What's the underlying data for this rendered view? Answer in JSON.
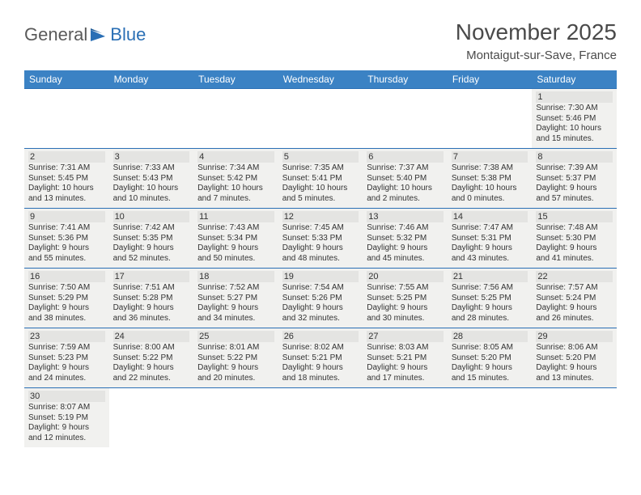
{
  "logo": {
    "text1": "General",
    "text2": "Blue"
  },
  "title": "November 2025",
  "location": "Montaigut-sur-Save, France",
  "colors": {
    "header_bg": "#3b82c4",
    "header_text": "#ffffff",
    "border": "#2a6fb5",
    "cell_bg": "#f1f1ef",
    "daynum_bg": "#e4e4e2",
    "text": "#333333",
    "logo_gray": "#5a5a5a",
    "logo_blue": "#2a6fb5"
  },
  "weekdays": [
    "Sunday",
    "Monday",
    "Tuesday",
    "Wednesday",
    "Thursday",
    "Friday",
    "Saturday"
  ],
  "weeks": [
    [
      null,
      null,
      null,
      null,
      null,
      null,
      {
        "d": "1",
        "sr": "Sunrise: 7:30 AM",
        "ss": "Sunset: 5:46 PM",
        "dl1": "Daylight: 10 hours",
        "dl2": "and 15 minutes."
      }
    ],
    [
      {
        "d": "2",
        "sr": "Sunrise: 7:31 AM",
        "ss": "Sunset: 5:45 PM",
        "dl1": "Daylight: 10 hours",
        "dl2": "and 13 minutes."
      },
      {
        "d": "3",
        "sr": "Sunrise: 7:33 AM",
        "ss": "Sunset: 5:43 PM",
        "dl1": "Daylight: 10 hours",
        "dl2": "and 10 minutes."
      },
      {
        "d": "4",
        "sr": "Sunrise: 7:34 AM",
        "ss": "Sunset: 5:42 PM",
        "dl1": "Daylight: 10 hours",
        "dl2": "and 7 minutes."
      },
      {
        "d": "5",
        "sr": "Sunrise: 7:35 AM",
        "ss": "Sunset: 5:41 PM",
        "dl1": "Daylight: 10 hours",
        "dl2": "and 5 minutes."
      },
      {
        "d": "6",
        "sr": "Sunrise: 7:37 AM",
        "ss": "Sunset: 5:40 PM",
        "dl1": "Daylight: 10 hours",
        "dl2": "and 2 minutes."
      },
      {
        "d": "7",
        "sr": "Sunrise: 7:38 AM",
        "ss": "Sunset: 5:38 PM",
        "dl1": "Daylight: 10 hours",
        "dl2": "and 0 minutes."
      },
      {
        "d": "8",
        "sr": "Sunrise: 7:39 AM",
        "ss": "Sunset: 5:37 PM",
        "dl1": "Daylight: 9 hours",
        "dl2": "and 57 minutes."
      }
    ],
    [
      {
        "d": "9",
        "sr": "Sunrise: 7:41 AM",
        "ss": "Sunset: 5:36 PM",
        "dl1": "Daylight: 9 hours",
        "dl2": "and 55 minutes."
      },
      {
        "d": "10",
        "sr": "Sunrise: 7:42 AM",
        "ss": "Sunset: 5:35 PM",
        "dl1": "Daylight: 9 hours",
        "dl2": "and 52 minutes."
      },
      {
        "d": "11",
        "sr": "Sunrise: 7:43 AM",
        "ss": "Sunset: 5:34 PM",
        "dl1": "Daylight: 9 hours",
        "dl2": "and 50 minutes."
      },
      {
        "d": "12",
        "sr": "Sunrise: 7:45 AM",
        "ss": "Sunset: 5:33 PM",
        "dl1": "Daylight: 9 hours",
        "dl2": "and 48 minutes."
      },
      {
        "d": "13",
        "sr": "Sunrise: 7:46 AM",
        "ss": "Sunset: 5:32 PM",
        "dl1": "Daylight: 9 hours",
        "dl2": "and 45 minutes."
      },
      {
        "d": "14",
        "sr": "Sunrise: 7:47 AM",
        "ss": "Sunset: 5:31 PM",
        "dl1": "Daylight: 9 hours",
        "dl2": "and 43 minutes."
      },
      {
        "d": "15",
        "sr": "Sunrise: 7:48 AM",
        "ss": "Sunset: 5:30 PM",
        "dl1": "Daylight: 9 hours",
        "dl2": "and 41 minutes."
      }
    ],
    [
      {
        "d": "16",
        "sr": "Sunrise: 7:50 AM",
        "ss": "Sunset: 5:29 PM",
        "dl1": "Daylight: 9 hours",
        "dl2": "and 38 minutes."
      },
      {
        "d": "17",
        "sr": "Sunrise: 7:51 AM",
        "ss": "Sunset: 5:28 PM",
        "dl1": "Daylight: 9 hours",
        "dl2": "and 36 minutes."
      },
      {
        "d": "18",
        "sr": "Sunrise: 7:52 AM",
        "ss": "Sunset: 5:27 PM",
        "dl1": "Daylight: 9 hours",
        "dl2": "and 34 minutes."
      },
      {
        "d": "19",
        "sr": "Sunrise: 7:54 AM",
        "ss": "Sunset: 5:26 PM",
        "dl1": "Daylight: 9 hours",
        "dl2": "and 32 minutes."
      },
      {
        "d": "20",
        "sr": "Sunrise: 7:55 AM",
        "ss": "Sunset: 5:25 PM",
        "dl1": "Daylight: 9 hours",
        "dl2": "and 30 minutes."
      },
      {
        "d": "21",
        "sr": "Sunrise: 7:56 AM",
        "ss": "Sunset: 5:25 PM",
        "dl1": "Daylight: 9 hours",
        "dl2": "and 28 minutes."
      },
      {
        "d": "22",
        "sr": "Sunrise: 7:57 AM",
        "ss": "Sunset: 5:24 PM",
        "dl1": "Daylight: 9 hours",
        "dl2": "and 26 minutes."
      }
    ],
    [
      {
        "d": "23",
        "sr": "Sunrise: 7:59 AM",
        "ss": "Sunset: 5:23 PM",
        "dl1": "Daylight: 9 hours",
        "dl2": "and 24 minutes."
      },
      {
        "d": "24",
        "sr": "Sunrise: 8:00 AM",
        "ss": "Sunset: 5:22 PM",
        "dl1": "Daylight: 9 hours",
        "dl2": "and 22 minutes."
      },
      {
        "d": "25",
        "sr": "Sunrise: 8:01 AM",
        "ss": "Sunset: 5:22 PM",
        "dl1": "Daylight: 9 hours",
        "dl2": "and 20 minutes."
      },
      {
        "d": "26",
        "sr": "Sunrise: 8:02 AM",
        "ss": "Sunset: 5:21 PM",
        "dl1": "Daylight: 9 hours",
        "dl2": "and 18 minutes."
      },
      {
        "d": "27",
        "sr": "Sunrise: 8:03 AM",
        "ss": "Sunset: 5:21 PM",
        "dl1": "Daylight: 9 hours",
        "dl2": "and 17 minutes."
      },
      {
        "d": "28",
        "sr": "Sunrise: 8:05 AM",
        "ss": "Sunset: 5:20 PM",
        "dl1": "Daylight: 9 hours",
        "dl2": "and 15 minutes."
      },
      {
        "d": "29",
        "sr": "Sunrise: 8:06 AM",
        "ss": "Sunset: 5:20 PM",
        "dl1": "Daylight: 9 hours",
        "dl2": "and 13 minutes."
      }
    ],
    [
      {
        "d": "30",
        "sr": "Sunrise: 8:07 AM",
        "ss": "Sunset: 5:19 PM",
        "dl1": "Daylight: 9 hours",
        "dl2": "and 12 minutes."
      },
      null,
      null,
      null,
      null,
      null,
      null
    ]
  ]
}
